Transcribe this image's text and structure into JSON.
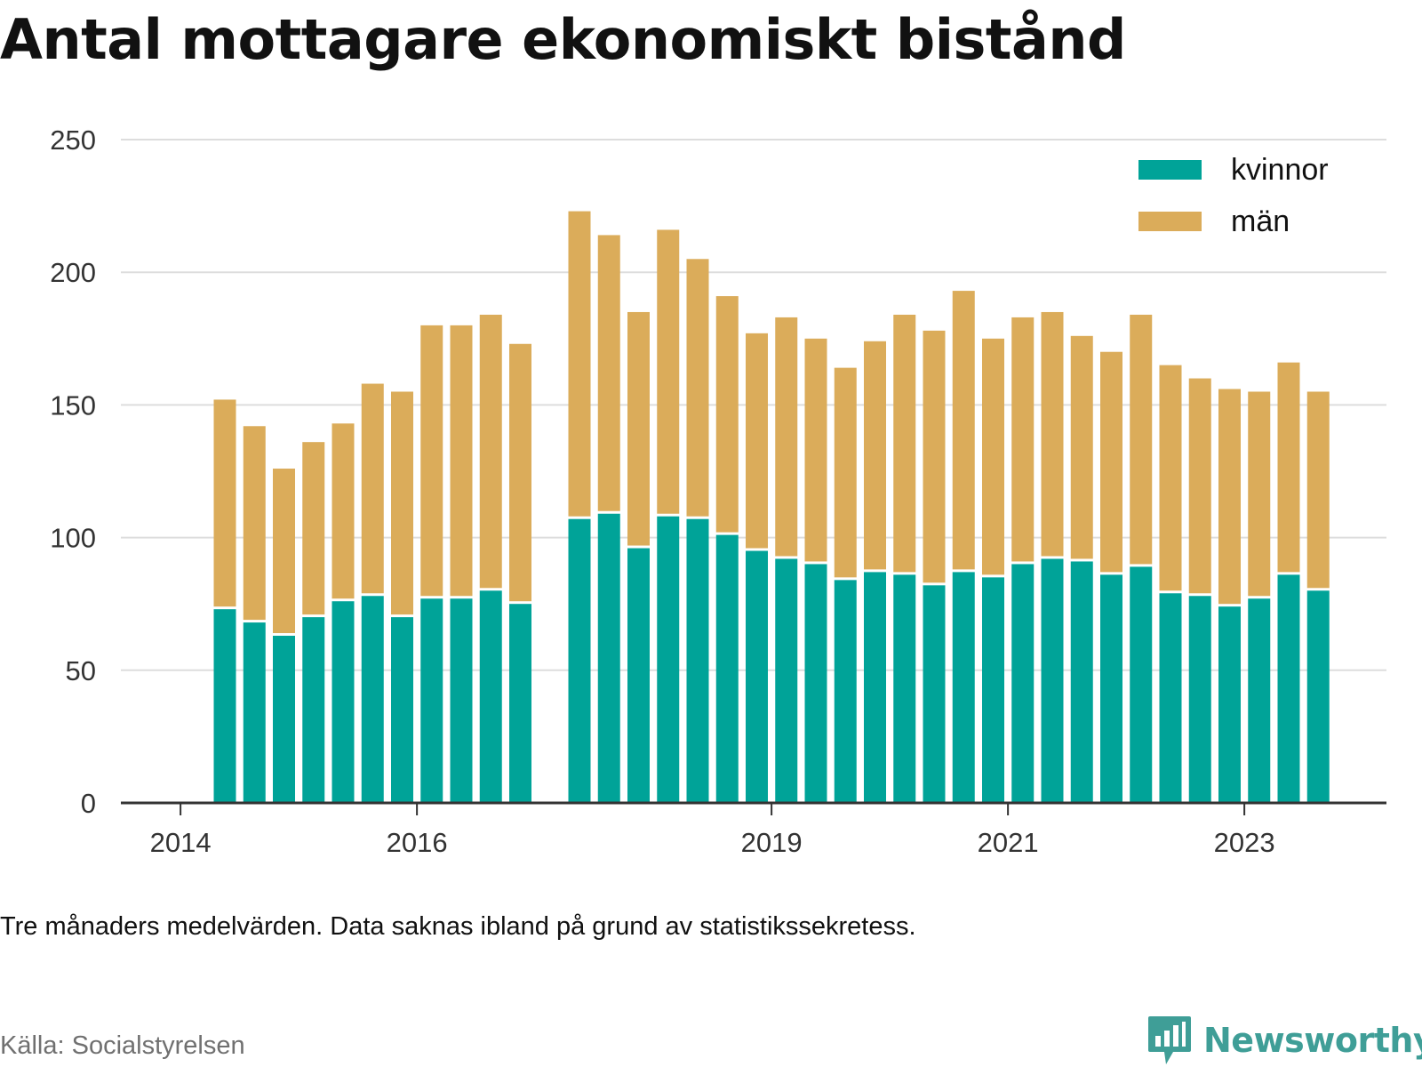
{
  "title": "Antal mottagare ekonomiskt bistånd",
  "note": "Tre månaders medelvärden. Data saknas ibland på grund av statistikssekretess.",
  "source": "Källa: Socialstyrelsen",
  "brand": "Newsworthy",
  "colors": {
    "kvinnor": "#00a398",
    "man": "#dbac5a",
    "grid": "#dddddd",
    "axis": "#333333",
    "brand": "#3f9e97"
  },
  "chart_data": {
    "type": "bar",
    "stacked": true,
    "ylim": [
      0,
      250
    ],
    "yticks": [
      "0",
      "50",
      "100",
      "150",
      "200",
      "250"
    ],
    "xticks": [
      "2014",
      "2016",
      "2019",
      "2021",
      "2023"
    ],
    "grid": true,
    "legend_position": "top-right",
    "legend": [
      "kvinnor",
      "män"
    ],
    "categories": [
      "2014-Q2",
      "2014-Q3",
      "2014-Q4",
      "2015-Q1",
      "2015-Q2",
      "2015-Q3",
      "2015-Q4",
      "2016-Q1",
      "2016-Q2",
      "2016-Q3",
      "2016-Q4",
      "2017-Q2",
      "2017-Q3",
      "2017-Q4",
      "2018-Q1",
      "2018-Q2",
      "2018-Q3",
      "2018-Q4",
      "2019-Q1",
      "2019-Q2",
      "2019-Q3",
      "2019-Q4",
      "2020-Q1",
      "2020-Q2",
      "2020-Q3",
      "2020-Q4",
      "2021-Q1",
      "2021-Q2",
      "2021-Q3",
      "2021-Q4",
      "2022-Q1",
      "2022-Q2",
      "2022-Q3",
      "2022-Q4",
      "2023-Q1",
      "2023-Q2",
      "2023-Q3"
    ],
    "series": [
      {
        "name": "kvinnor",
        "values": [
          73,
          68,
          63,
          70,
          76,
          78,
          70,
          77,
          77,
          80,
          75,
          107,
          109,
          96,
          108,
          107,
          101,
          95,
          92,
          90,
          84,
          87,
          86,
          82,
          87,
          85,
          90,
          92,
          91,
          86,
          89,
          79,
          78,
          74,
          77,
          86,
          80
        ]
      },
      {
        "name": "män",
        "values": [
          79,
          74,
          63,
          66,
          67,
          80,
          85,
          103,
          103,
          104,
          98,
          116,
          105,
          89,
          108,
          98,
          90,
          82,
          91,
          85,
          80,
          87,
          98,
          96,
          106,
          90,
          93,
          93,
          85,
          84,
          95,
          86,
          82,
          82,
          78,
          80,
          75
        ]
      }
    ]
  }
}
